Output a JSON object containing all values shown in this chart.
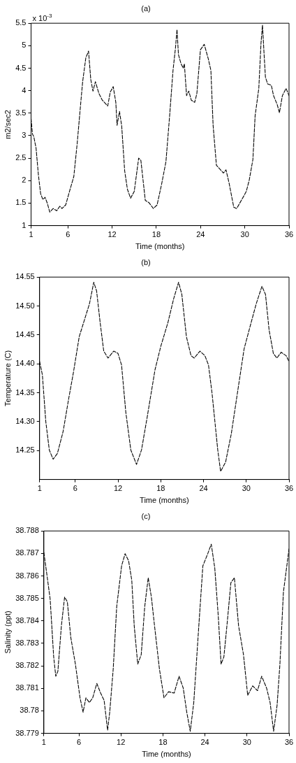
{
  "chart_data": [
    {
      "type": "line",
      "title": "(a)",
      "xlabel": "Time (months)",
      "ylabel": "m2/sec2",
      "annotations": [
        "x 10$^{-3}$"
      ],
      "line_style": "dashed",
      "marker": "none",
      "grid": false,
      "xlim": [
        1,
        36
      ],
      "xticks": [
        1,
        6,
        12,
        18,
        24,
        30,
        36
      ],
      "ylim": [
        1,
        5.5
      ],
      "yticks": [
        1,
        1.5,
        2,
        2.5,
        3,
        3.5,
        4,
        4.5,
        5,
        5.5
      ],
      "x": [
        1,
        1.2,
        1.37,
        1.68,
        2.0,
        2.3,
        2.6,
        2.9,
        3.2,
        3.54,
        4.0,
        4.47,
        4.9,
        5.2,
        5.7,
        6.3,
        6.8,
        7.26,
        7.72,
        8.0,
        8.43,
        8.8,
        9.1,
        9.4,
        9.73,
        10.2,
        10.66,
        11.4,
        11.75,
        12.15,
        12.5,
        12.67,
        13.0,
        13.3,
        13.7,
        14.07,
        14.5,
        15.0,
        15.6,
        15.9,
        16.5,
        17.0,
        17.6,
        18.1,
        18.7,
        19.3,
        19.8,
        20.26,
        20.6,
        20.8,
        21.0,
        21.35,
        21.65,
        21.8,
        22.1,
        22.4,
        22.74,
        23.2,
        23.5,
        23.98,
        24.5,
        25.06,
        25.4,
        25.7,
        26.15,
        27.1,
        27.45,
        27.85,
        28.5,
        28.9,
        29.7,
        30.2,
        30.6,
        31.1,
        31.4,
        31.9,
        32.2,
        32.4,
        32.6,
        32.8,
        33.1,
        33.6,
        33.9,
        34.4,
        34.7,
        35.1,
        35.6,
        36
      ],
      "series": [
        {
          "color": "#000000",
          "values": [
            3.38,
            3.03,
            2.98,
            2.72,
            2.12,
            1.71,
            1.58,
            1.63,
            1.5,
            1.3,
            1.38,
            1.33,
            1.43,
            1.38,
            1.46,
            1.81,
            2.09,
            2.83,
            3.69,
            4.2,
            4.73,
            4.88,
            4.25,
            3.99,
            4.2,
            3.94,
            3.79,
            3.66,
            3.97,
            4.09,
            3.74,
            3.23,
            3.54,
            3.21,
            2.22,
            1.81,
            1.61,
            1.76,
            2.5,
            2.45,
            1.56,
            1.51,
            1.38,
            1.46,
            1.91,
            2.42,
            3.44,
            4.45,
            4.96,
            5.36,
            4.8,
            4.6,
            4.5,
            4.6,
            3.89,
            3.99,
            3.79,
            3.74,
            3.94,
            4.91,
            5.03,
            4.7,
            4.45,
            3.23,
            2.34,
            2.17,
            2.24,
            1.96,
            1.41,
            1.38,
            1.61,
            1.76,
            2.01,
            2.47,
            3.44,
            4.05,
            5.06,
            5.46,
            4.86,
            4.3,
            4.15,
            4.12,
            3.89,
            3.69,
            3.51,
            3.89,
            4.05,
            3.89
          ]
        }
      ]
    },
    {
      "type": "line",
      "title": "(b)",
      "xlabel": "Time (months)",
      "ylabel": "Temperature (C)",
      "line_style": "dashed",
      "marker": "none",
      "grid": false,
      "xlim": [
        1,
        36
      ],
      "xticks": [
        1,
        6,
        12,
        18,
        24,
        30,
        36
      ],
      "ylim": [
        14.2,
        14.55
      ],
      "yticks": [
        {
          "value": 14.25,
          "label": "14.25"
        },
        {
          "value": 14.3,
          "label": "14.30"
        },
        {
          "value": 14.35,
          "label": "14.35"
        },
        {
          "value": 14.4,
          "label": "14.40"
        },
        {
          "value": 14.45,
          "label": "14.45"
        },
        {
          "value": 14.5,
          "label": "14.50"
        },
        {
          "value": 14.55,
          "label": "14.55"
        }
      ],
      "x": [
        1,
        1.39,
        1.87,
        2.36,
        2.9,
        3.5,
        4.3,
        5.1,
        5.76,
        6.56,
        7.37,
        8.0,
        8.6,
        9.0,
        9.5,
        10.0,
        10.6,
        11.4,
        12.0,
        12.5,
        13.1,
        13.8,
        14.6,
        15.3,
        16.1,
        17.2,
        18.0,
        19.0,
        19.8,
        20.5,
        20.96,
        21.6,
        22.25,
        22.7,
        23.5,
        24.2,
        24.7,
        25.2,
        26.0,
        26.4,
        27.1,
        27.9,
        28.9,
        29.7,
        30.5,
        31.4,
        32.2,
        32.7,
        33.2,
        33.8,
        34.3,
        34.9,
        35.6,
        36
      ],
      "series": [
        {
          "color": "#000000",
          "values": [
            14.404,
            14.381,
            14.3,
            14.251,
            14.235,
            14.245,
            14.283,
            14.341,
            14.386,
            14.447,
            14.479,
            14.504,
            14.541,
            14.526,
            14.471,
            14.422,
            14.41,
            14.422,
            14.418,
            14.398,
            14.316,
            14.251,
            14.226,
            14.251,
            14.308,
            14.39,
            14.43,
            14.471,
            14.512,
            14.541,
            14.52,
            14.447,
            14.414,
            14.41,
            14.422,
            14.414,
            14.398,
            14.349,
            14.251,
            14.214,
            14.23,
            14.279,
            14.361,
            14.426,
            14.463,
            14.504,
            14.534,
            14.52,
            14.459,
            14.418,
            14.41,
            14.42,
            14.414,
            14.404
          ]
        }
      ]
    },
    {
      "type": "line",
      "title": "(c)",
      "xlabel": "Time (months)",
      "ylabel": "Salinity (ppt)",
      "line_style": "dashed",
      "marker": "none",
      "grid": false,
      "xlim": [
        1,
        36
      ],
      "xticks": [
        1,
        6,
        12,
        18,
        24,
        30,
        36
      ],
      "ylim": [
        38.779,
        38.788
      ],
      "yticks": [
        38.779,
        38.78,
        38.781,
        38.782,
        38.783,
        38.784,
        38.785,
        38.786,
        38.787,
        38.788
      ],
      "x": [
        1,
        1.4,
        1.9,
        2.4,
        2.7,
        3.0,
        3.5,
        3.96,
        4.35,
        4.85,
        5.5,
        6.16,
        6.6,
        7.0,
        7.5,
        7.97,
        8.56,
        9.1,
        9.6,
        10.1,
        10.4,
        10.9,
        11.4,
        12.1,
        12.6,
        13.1,
        13.55,
        13.9,
        14.4,
        14.9,
        15.4,
        15.9,
        16.35,
        16.8,
        17.5,
        18.15,
        18.8,
        19.6,
        20.3,
        20.9,
        21.4,
        21.9,
        22.4,
        23.1,
        23.7,
        24.4,
        24.9,
        25.4,
        25.9,
        26.3,
        26.7,
        27.2,
        27.7,
        28.2,
        28.5,
        28.8,
        29.5,
        30.1,
        30.8,
        31.5,
        32.1,
        32.8,
        33.3,
        33.8,
        34.3,
        34.7,
        35.2,
        36
      ],
      "series": [
        {
          "color": "#000000",
          "values": [
            38.78704,
            38.78613,
            38.78496,
            38.7824,
            38.78154,
            38.78176,
            38.78378,
            38.78506,
            38.78485,
            38.78325,
            38.78208,
            38.78058,
            38.77994,
            38.78058,
            38.78037,
            38.78058,
            38.78122,
            38.78079,
            38.78047,
            38.77914,
            38.77994,
            38.78186,
            38.78464,
            38.78645,
            38.78699,
            38.78667,
            38.78581,
            38.78378,
            38.78208,
            38.7825,
            38.78464,
            38.78592,
            38.78506,
            38.78378,
            38.78186,
            38.78058,
            38.78085,
            38.78079,
            38.78154,
            38.78101,
            38.77994,
            38.77909,
            38.78037,
            38.78368,
            38.78645,
            38.78699,
            38.78741,
            38.78635,
            38.78421,
            38.78208,
            38.7824,
            38.784,
            38.7857,
            38.78592,
            38.78485,
            38.78378,
            38.7825,
            38.78069,
            38.78111,
            38.7809,
            38.78154,
            38.78101,
            38.78037,
            38.77909,
            38.78026,
            38.78208,
            38.78528,
            38.7872
          ]
        }
      ]
    }
  ]
}
